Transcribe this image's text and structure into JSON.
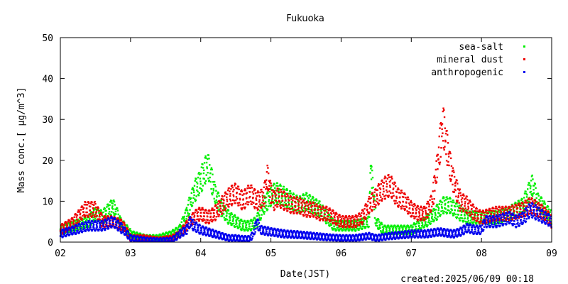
{
  "chart_data": {
    "type": "scatter",
    "title": "Fukuoka",
    "xlabel": "Date(JST)",
    "ylabel": "Mass conc.[ μg/m^3]",
    "ylim": [
      0,
      50
    ],
    "yticks": [
      "0",
      "10",
      "20",
      "30",
      "40",
      "50"
    ],
    "xlim": [
      "2025-06-02",
      "2025-06-09"
    ],
    "xticks": [
      "02",
      "03",
      "04",
      "05",
      "06",
      "07",
      "08",
      "09"
    ],
    "grid": false,
    "legend_position": "top-right",
    "series": [
      {
        "name": "sea-salt",
        "color": "#00ee00",
        "points": [
          [
            2.0,
            3
          ],
          [
            2.2,
            4
          ],
          [
            2.4,
            5
          ],
          [
            2.5,
            7
          ],
          [
            2.6,
            6
          ],
          [
            2.75,
            9
          ],
          [
            2.85,
            5
          ],
          [
            3.0,
            2
          ],
          [
            3.2,
            1
          ],
          [
            3.4,
            1
          ],
          [
            3.6,
            2
          ],
          [
            3.7,
            3
          ],
          [
            3.8,
            7
          ],
          [
            3.9,
            12
          ],
          [
            4.0,
            15
          ],
          [
            4.1,
            19
          ],
          [
            4.2,
            12
          ],
          [
            4.3,
            8
          ],
          [
            4.4,
            6
          ],
          [
            4.5,
            5
          ],
          [
            4.6,
            4
          ],
          [
            4.7,
            4
          ],
          [
            4.8,
            5
          ],
          [
            4.9,
            9
          ],
          [
            5.0,
            11
          ],
          [
            5.05,
            12
          ],
          [
            5.1,
            12
          ],
          [
            5.2,
            11
          ],
          [
            5.3,
            10
          ],
          [
            5.4,
            9
          ],
          [
            5.5,
            10
          ],
          [
            5.6,
            9
          ],
          [
            5.7,
            8
          ],
          [
            5.8,
            6
          ],
          [
            5.9,
            4
          ],
          [
            6.0,
            4
          ],
          [
            6.2,
            4
          ],
          [
            6.4,
            5
          ],
          [
            6.42,
            19
          ],
          [
            6.5,
            5
          ],
          [
            6.6,
            3
          ],
          [
            6.8,
            3
          ],
          [
            7.0,
            3
          ],
          [
            7.2,
            5
          ],
          [
            7.35,
            7
          ],
          [
            7.45,
            9
          ],
          [
            7.55,
            9
          ],
          [
            7.7,
            7
          ],
          [
            7.8,
            6
          ],
          [
            8.0,
            6
          ],
          [
            8.2,
            6
          ],
          [
            8.4,
            7
          ],
          [
            8.6,
            9
          ],
          [
            8.72,
            14
          ],
          [
            8.8,
            10
          ],
          [
            8.9,
            8
          ],
          [
            9.0,
            6
          ]
        ]
      },
      {
        "name": "mineral dust",
        "color": "#ee0000",
        "points": [
          [
            2.0,
            3
          ],
          [
            2.2,
            5
          ],
          [
            2.35,
            8
          ],
          [
            2.5,
            8
          ],
          [
            2.6,
            5
          ],
          [
            2.75,
            5
          ],
          [
            2.9,
            4
          ],
          [
            3.0,
            1
          ],
          [
            3.2,
            1
          ],
          [
            3.4,
            0.5
          ],
          [
            3.6,
            1
          ],
          [
            3.7,
            2
          ],
          [
            3.8,
            4
          ],
          [
            3.9,
            6
          ],
          [
            4.0,
            7
          ],
          [
            4.1,
            6
          ],
          [
            4.2,
            7
          ],
          [
            4.3,
            9
          ],
          [
            4.4,
            11
          ],
          [
            4.5,
            12
          ],
          [
            4.6,
            10
          ],
          [
            4.7,
            12
          ],
          [
            4.8,
            10
          ],
          [
            4.9,
            11
          ],
          [
            4.95,
            16
          ],
          [
            5.0,
            12
          ],
          [
            5.05,
            10
          ],
          [
            5.1,
            11
          ],
          [
            5.2,
            10
          ],
          [
            5.3,
            9
          ],
          [
            5.4,
            9
          ],
          [
            5.5,
            8
          ],
          [
            5.6,
            8
          ],
          [
            5.7,
            7
          ],
          [
            5.8,
            7
          ],
          [
            5.9,
            6
          ],
          [
            6.0,
            5
          ],
          [
            6.2,
            5
          ],
          [
            6.3,
            6
          ],
          [
            6.4,
            9
          ],
          [
            6.5,
            11
          ],
          [
            6.6,
            13
          ],
          [
            6.7,
            14
          ],
          [
            6.8,
            11
          ],
          [
            6.9,
            10
          ],
          [
            7.0,
            8
          ],
          [
            7.1,
            7
          ],
          [
            7.2,
            7
          ],
          [
            7.3,
            10
          ],
          [
            7.38,
            20
          ],
          [
            7.45,
            29
          ],
          [
            7.5,
            24
          ],
          [
            7.55,
            19
          ],
          [
            7.6,
            15
          ],
          [
            7.7,
            10
          ],
          [
            7.8,
            9
          ],
          [
            7.9,
            7
          ],
          [
            8.0,
            6
          ],
          [
            8.2,
            7
          ],
          [
            8.4,
            7
          ],
          [
            8.6,
            8
          ],
          [
            8.7,
            9
          ],
          [
            8.8,
            8
          ],
          [
            8.9,
            7
          ],
          [
            9.0,
            5
          ]
        ]
      },
      {
        "name": "anthropogenic",
        "color": "#0000ee",
        "points": [
          [
            2.0,
            2
          ],
          [
            2.2,
            3
          ],
          [
            2.4,
            4
          ],
          [
            2.6,
            4
          ],
          [
            2.75,
            5
          ],
          [
            2.9,
            3
          ],
          [
            3.0,
            1
          ],
          [
            3.2,
            0.5
          ],
          [
            3.4,
            0.3
          ],
          [
            3.6,
            0.5
          ],
          [
            3.7,
            2
          ],
          [
            3.8,
            3
          ],
          [
            3.85,
            5
          ],
          [
            3.9,
            4
          ],
          [
            4.0,
            3
          ],
          [
            4.1,
            2.5
          ],
          [
            4.2,
            2
          ],
          [
            4.3,
            1.5
          ],
          [
            4.4,
            1
          ],
          [
            4.5,
            1
          ],
          [
            4.6,
            0.8
          ],
          [
            4.7,
            0.8
          ],
          [
            4.75,
            2
          ],
          [
            4.8,
            5
          ],
          [
            4.85,
            3
          ],
          [
            5.0,
            2.5
          ],
          [
            5.2,
            2
          ],
          [
            5.4,
            1.8
          ],
          [
            5.6,
            1.5
          ],
          [
            5.8,
            1.2
          ],
          [
            6.0,
            1
          ],
          [
            6.2,
            1
          ],
          [
            6.4,
            1.5
          ],
          [
            6.5,
            1
          ],
          [
            6.7,
            1.5
          ],
          [
            6.9,
            1.8
          ],
          [
            7.0,
            2
          ],
          [
            7.2,
            2
          ],
          [
            7.4,
            2.5
          ],
          [
            7.6,
            2
          ],
          [
            7.7,
            2.5
          ],
          [
            7.8,
            3.5
          ],
          [
            7.9,
            3
          ],
          [
            8.0,
            3
          ],
          [
            8.05,
            5
          ],
          [
            8.2,
            5
          ],
          [
            8.4,
            6
          ],
          [
            8.5,
            5
          ],
          [
            8.6,
            6
          ],
          [
            8.7,
            8
          ],
          [
            8.8,
            7
          ],
          [
            8.9,
            6
          ],
          [
            9.0,
            5
          ]
        ]
      }
    ]
  },
  "footer": {
    "created": "created:2025/06/09 00:18"
  }
}
